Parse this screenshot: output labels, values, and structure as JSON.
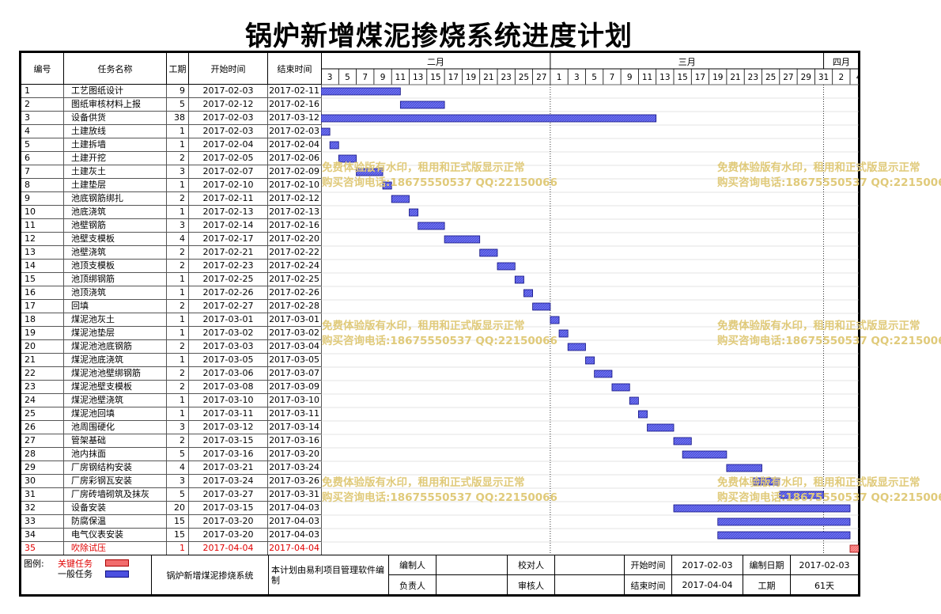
{
  "title": "锅炉新增煤泥掺烧系统进度计划",
  "columns": {
    "no": "编号",
    "name": "任务名称",
    "dur": "工期",
    "start": "开始时间",
    "end": "结束时间"
  },
  "months": [
    "二月",
    "三月",
    "四月"
  ],
  "day_ticks": [
    "3",
    "5",
    "7",
    "9",
    "11",
    "13",
    "15",
    "17",
    "19",
    "21",
    "23",
    "25",
    "27",
    "1",
    "3",
    "5",
    "7",
    "9",
    "11",
    "13",
    "15",
    "17",
    "19",
    "21",
    "23",
    "25",
    "27",
    "29",
    "31",
    "2",
    "4"
  ],
  "chart_data": {
    "type": "gantt",
    "title": "锅炉新增煤泥掺烧系统进度计划",
    "x_axis": {
      "start": "2017-02-03",
      "end": "2017-04-04",
      "unit": "day"
    },
    "tasks": [
      {
        "no": "1",
        "name": "工艺图纸设计",
        "dur": "9",
        "start": "2017-02-03",
        "end": "2017-02-11",
        "critical": false
      },
      {
        "no": "2",
        "name": "图纸审核材料上报",
        "dur": "5",
        "start": "2017-02-12",
        "end": "2017-02-16",
        "critical": false
      },
      {
        "no": "3",
        "name": "设备供货",
        "dur": "38",
        "start": "2017-02-03",
        "end": "2017-03-12",
        "critical": false
      },
      {
        "no": "4",
        "name": "土建放线",
        "dur": "1",
        "start": "2017-02-03",
        "end": "2017-02-03",
        "critical": false
      },
      {
        "no": "5",
        "name": "土建拆墙",
        "dur": "1",
        "start": "2017-02-04",
        "end": "2017-02-04",
        "critical": false
      },
      {
        "no": "6",
        "name": "土建开挖",
        "dur": "2",
        "start": "2017-02-05",
        "end": "2017-02-06",
        "critical": false
      },
      {
        "no": "7",
        "name": "土建灰土",
        "dur": "3",
        "start": "2017-02-07",
        "end": "2017-02-09",
        "critical": false
      },
      {
        "no": "8",
        "name": "土建垫层",
        "dur": "1",
        "start": "2017-02-10",
        "end": "2017-02-10",
        "critical": false
      },
      {
        "no": "9",
        "name": "池底钢筋绑扎",
        "dur": "2",
        "start": "2017-02-11",
        "end": "2017-02-12",
        "critical": false
      },
      {
        "no": "10",
        "name": "池底浇筑",
        "dur": "1",
        "start": "2017-02-13",
        "end": "2017-02-13",
        "critical": false
      },
      {
        "no": "11",
        "name": "池壁钢筋",
        "dur": "3",
        "start": "2017-02-14",
        "end": "2017-02-16",
        "critical": false
      },
      {
        "no": "12",
        "name": "池壁支模板",
        "dur": "4",
        "start": "2017-02-17",
        "end": "2017-02-20",
        "critical": false
      },
      {
        "no": "13",
        "name": "池壁浇筑",
        "dur": "2",
        "start": "2017-02-21",
        "end": "2017-02-22",
        "critical": false
      },
      {
        "no": "14",
        "name": "池顶支模板",
        "dur": "2",
        "start": "2017-02-23",
        "end": "2017-02-24",
        "critical": false
      },
      {
        "no": "15",
        "name": "池顶绑钢筋",
        "dur": "1",
        "start": "2017-02-25",
        "end": "2017-02-25",
        "critical": false
      },
      {
        "no": "16",
        "name": "池顶浇筑",
        "dur": "1",
        "start": "2017-02-26",
        "end": "2017-02-26",
        "critical": false
      },
      {
        "no": "17",
        "name": "回填",
        "dur": "2",
        "start": "2017-02-27",
        "end": "2017-02-28",
        "critical": false
      },
      {
        "no": "18",
        "name": "煤泥池灰土",
        "dur": "1",
        "start": "2017-03-01",
        "end": "2017-03-01",
        "critical": false
      },
      {
        "no": "19",
        "name": "煤泥池垫层",
        "dur": "1",
        "start": "2017-03-02",
        "end": "2017-03-02",
        "critical": false
      },
      {
        "no": "20",
        "name": "煤泥池池底钢筋",
        "dur": "2",
        "start": "2017-03-03",
        "end": "2017-03-04",
        "critical": false
      },
      {
        "no": "21",
        "name": "煤泥池底浇筑",
        "dur": "1",
        "start": "2017-03-05",
        "end": "2017-03-05",
        "critical": false
      },
      {
        "no": "22",
        "name": "煤泥池池壁绑钢筋",
        "dur": "2",
        "start": "2017-03-06",
        "end": "2017-03-07",
        "critical": false
      },
      {
        "no": "23",
        "name": "煤泥池壁支模板",
        "dur": "2",
        "start": "2017-03-08",
        "end": "2017-03-09",
        "critical": false
      },
      {
        "no": "24",
        "name": "煤泥池壁浇筑",
        "dur": "1",
        "start": "2017-03-10",
        "end": "2017-03-10",
        "critical": false
      },
      {
        "no": "25",
        "name": "煤泥池回填",
        "dur": "1",
        "start": "2017-03-11",
        "end": "2017-03-11",
        "critical": false
      },
      {
        "no": "26",
        "name": "池周围硬化",
        "dur": "3",
        "start": "2017-03-12",
        "end": "2017-03-14",
        "critical": false
      },
      {
        "no": "27",
        "name": "管架基础",
        "dur": "2",
        "start": "2017-03-15",
        "end": "2017-03-16",
        "critical": false
      },
      {
        "no": "28",
        "name": "池内抹面",
        "dur": "5",
        "start": "2017-03-16",
        "end": "2017-03-20",
        "critical": false
      },
      {
        "no": "29",
        "name": "厂房钢结构安装",
        "dur": "4",
        "start": "2017-03-21",
        "end": "2017-03-24",
        "critical": false
      },
      {
        "no": "30",
        "name": "厂房彩钢瓦安装",
        "dur": "3",
        "start": "2017-03-24",
        "end": "2017-03-26",
        "critical": false
      },
      {
        "no": "31",
        "name": "厂房砖墙砌筑及抹灰",
        "dur": "5",
        "start": "2017-03-27",
        "end": "2017-03-31",
        "critical": false
      },
      {
        "no": "32",
        "name": "设备安装",
        "dur": "20",
        "start": "2017-03-15",
        "end": "2017-04-03",
        "critical": false
      },
      {
        "no": "33",
        "name": "防腐保温",
        "dur": "15",
        "start": "2017-03-20",
        "end": "2017-04-03",
        "critical": false
      },
      {
        "no": "34",
        "name": "电气仪表安装",
        "dur": "15",
        "start": "2017-03-20",
        "end": "2017-04-03",
        "critical": false
      },
      {
        "no": "35",
        "name": "吹除试压",
        "dur": "1",
        "start": "2017-04-04",
        "end": "2017-04-04",
        "critical": true
      }
    ]
  },
  "watermark": {
    "line1": "免费体验版有水印，租用和正式版显示正常",
    "line2": "购买咨询电话:18675550537 QQ:22150066"
  },
  "footer": {
    "legend_label": "图例:",
    "legend_critical": "关键任务",
    "legend_normal": "一般任务",
    "project": "锅炉新增煤泥掺烧系统",
    "software": "本计划由易利项目管理软件编制",
    "editor_label": "编制人",
    "checker_label": "校对人",
    "owner_label": "负责人",
    "reviewer_label": "审核人",
    "start_label": "开始时间",
    "start_value": "2017-02-03",
    "end_label": "结束时间",
    "end_value": "2017-04-04",
    "date_label": "编制日期",
    "date_value": "2017-02-03",
    "period_label": "工期",
    "period_value": "61天"
  },
  "colors": {
    "bar": "#4c50e0",
    "bar_border": "#101080",
    "critical_bar": "#f26c6c",
    "critical_text": "#e00000",
    "watermark": "#e0ca7a"
  }
}
